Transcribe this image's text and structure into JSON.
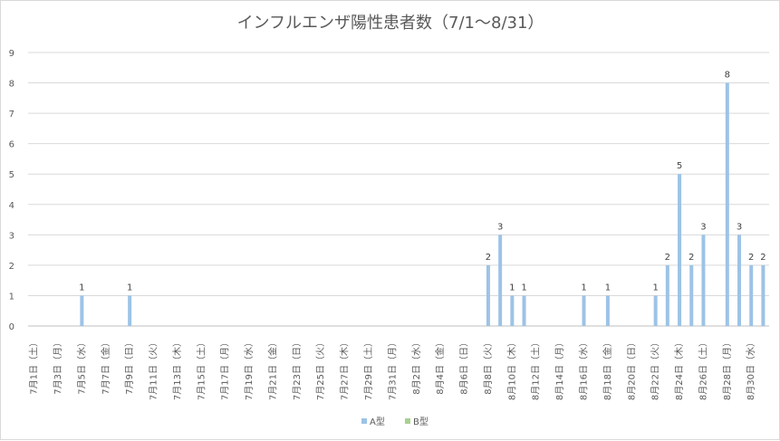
{
  "chart_data": {
    "type": "bar",
    "title": "インフルエンザ陽性患者数（7/1〜8/31）",
    "xlabel": "",
    "ylabel": "",
    "ylim": [
      0,
      9
    ],
    "yticks": [
      "0",
      "1",
      "2",
      "3",
      "4",
      "5",
      "6",
      "7",
      "8",
      "9"
    ],
    "grid": true,
    "legend_position": "bottom",
    "categories": [
      "7/1",
      "7/2",
      "7/3",
      "7/4",
      "7/5",
      "7/6",
      "7/7",
      "7/8",
      "7/9",
      "7/10",
      "7/11",
      "7/12",
      "7/13",
      "7/14",
      "7/15",
      "7/16",
      "7/17",
      "7/18",
      "7/19",
      "7/20",
      "7/21",
      "7/22",
      "7/23",
      "7/24",
      "7/25",
      "7/26",
      "7/27",
      "7/28",
      "7/29",
      "7/30",
      "7/31",
      "8/1",
      "8/2",
      "8/3",
      "8/4",
      "8/5",
      "8/6",
      "8/7",
      "8/8",
      "8/9",
      "8/10",
      "8/11",
      "8/12",
      "8/13",
      "8/14",
      "8/15",
      "8/16",
      "8/17",
      "8/18",
      "8/19",
      "8/20",
      "8/21",
      "8/22",
      "8/23",
      "8/24",
      "8/25",
      "8/26",
      "8/27",
      "8/28",
      "8/29",
      "8/30",
      "8/31"
    ],
    "tick_labels": [
      "7月1日（土）",
      "7月3日（月）",
      "7月5日（水）",
      "7月7日（金）",
      "7月9日（日）",
      "7月11日（火）",
      "7月13日（木）",
      "7月15日（土）",
      "7月17日（月）",
      "7月19日（水）",
      "7月21日（金）",
      "7月23日（日）",
      "7月25日（火）",
      "7月27日（木）",
      "7月29日（土）",
      "7月31日（月）",
      "8月2日（水）",
      "8月4日（金）",
      "8月6日（日）",
      "8月8日（火）",
      "8月10日（木）",
      "8月12日（土）",
      "8月14日（月）",
      "8月16日（水）",
      "8月18日（金）",
      "8月20日（日）",
      "8月22日（火）",
      "8月24日（木）",
      "8月26日（土）",
      "8月28日（月）",
      "8月30日（水）"
    ],
    "series": [
      {
        "name": "A型",
        "color": "#9dc3e6",
        "values": [
          0,
          0,
          0,
          0,
          1,
          0,
          0,
          0,
          1,
          0,
          0,
          0,
          0,
          0,
          0,
          0,
          0,
          0,
          0,
          0,
          0,
          0,
          0,
          0,
          0,
          0,
          0,
          0,
          0,
          0,
          0,
          0,
          0,
          0,
          0,
          0,
          0,
          0,
          2,
          3,
          1,
          1,
          0,
          0,
          0,
          0,
          1,
          0,
          1,
          0,
          0,
          0,
          1,
          2,
          5,
          2,
          3,
          0,
          8,
          3,
          2,
          2
        ]
      },
      {
        "name": "B型",
        "color": "#a9d18e",
        "values": [
          0,
          0,
          0,
          0,
          0,
          0,
          0,
          0,
          0,
          0,
          0,
          0,
          0,
          0,
          0,
          0,
          0,
          0,
          0,
          0,
          0,
          0,
          0,
          0,
          0,
          0,
          0,
          0,
          0,
          0,
          0,
          0,
          0,
          0,
          0,
          0,
          0,
          0,
          0,
          0,
          0,
          0,
          0,
          0,
          0,
          0,
          0,
          0,
          0,
          0,
          0,
          0,
          0,
          0,
          0,
          0,
          0,
          0,
          0,
          0,
          0,
          0
        ]
      }
    ]
  }
}
